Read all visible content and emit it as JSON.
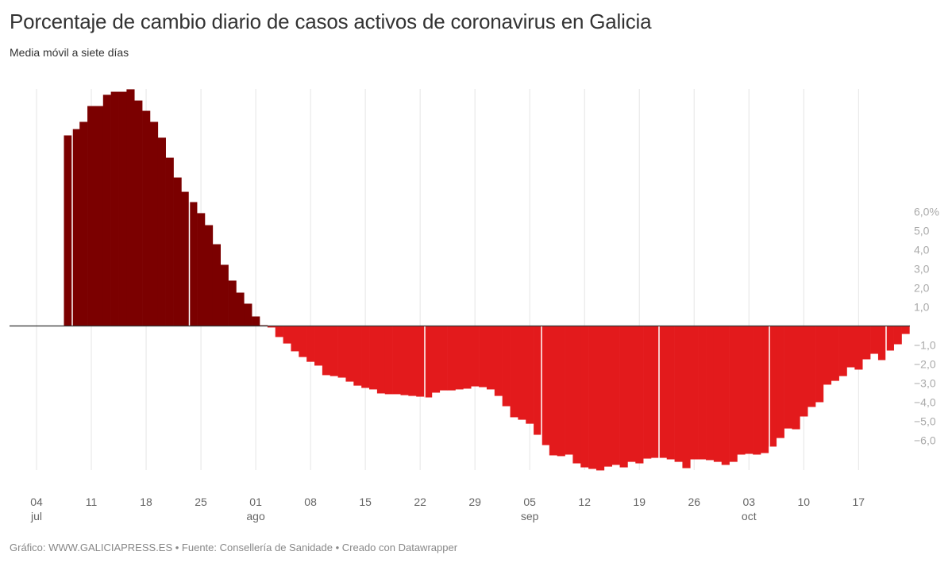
{
  "title": "Porcentaje de cambio diario de casos activos de coronavirus en Galicia",
  "subtitle": "Media móvil a siete días",
  "footer": "Gráfico: WWW.GALICIAPRESS.ES • Fuente: Consellería de Sanidade • Creado con Datawrapper",
  "colors": {
    "positive": "#7b0000",
    "negative": "#e31a1c",
    "grid": "#e5e5e5",
    "baseline": "#333333"
  },
  "chart_data": {
    "type": "bar",
    "title": "Porcentaje de cambio diario de casos activos de coronavirus en Galicia",
    "subtitle": "Media móvil a siete días",
    "xlabel": "",
    "ylabel": "%",
    "ylim": [
      -7.5,
      12.5
    ],
    "grid": true,
    "y_ticks": [
      "6,0%",
      "5,0",
      "4,0",
      "3,0",
      "2,0",
      "1,0",
      "−1,0",
      "−2,0",
      "−3,0",
      "−4,0",
      "−5,0",
      "−6,0"
    ],
    "y_tick_values": [
      6,
      5,
      4,
      3,
      2,
      1,
      -1,
      -2,
      -3,
      -4,
      -5,
      -6
    ],
    "x_ticks": [
      {
        "day": "04",
        "month": "jul"
      },
      {
        "day": "11",
        "month": ""
      },
      {
        "day": "18",
        "month": ""
      },
      {
        "day": "25",
        "month": ""
      },
      {
        "day": "01",
        "month": "ago"
      },
      {
        "day": "08",
        "month": ""
      },
      {
        "day": "15",
        "month": ""
      },
      {
        "day": "22",
        "month": ""
      },
      {
        "day": "29",
        "month": ""
      },
      {
        "day": "05",
        "month": "sep"
      },
      {
        "day": "12",
        "month": ""
      },
      {
        "day": "19",
        "month": ""
      },
      {
        "day": "26",
        "month": ""
      },
      {
        "day": "03",
        "month": "oct"
      },
      {
        "day": "10",
        "month": ""
      },
      {
        "day": "17",
        "month": ""
      }
    ],
    "start_date": "2020-07-08",
    "values": [
      10.0,
      10.33,
      10.71,
      11.54,
      11.54,
      12.13,
      12.29,
      12.29,
      12.42,
      11.83,
      11.29,
      10.71,
      9.88,
      8.83,
      7.79,
      7.04,
      6.5,
      5.92,
      5.29,
      4.29,
      3.21,
      2.38,
      1.75,
      1.17,
      0.5,
      0.04,
      -0.08,
      -0.58,
      -0.92,
      -1.33,
      -1.63,
      -1.88,
      -2.08,
      -2.58,
      -2.63,
      -2.71,
      -2.92,
      -3.13,
      -3.25,
      -3.33,
      -3.54,
      -3.58,
      -3.58,
      -3.63,
      -3.67,
      -3.71,
      -3.75,
      -3.5,
      -3.38,
      -3.38,
      -3.33,
      -3.29,
      -3.17,
      -3.21,
      -3.33,
      -3.67,
      -4.21,
      -4.79,
      -4.92,
      -5.13,
      -5.71,
      -6.25,
      -6.79,
      -6.83,
      -6.75,
      -7.21,
      -7.42,
      -7.5,
      -7.58,
      -7.38,
      -7.29,
      -7.42,
      -7.13,
      -7.21,
      -6.96,
      -6.92,
      -6.92,
      -7.0,
      -7.13,
      -7.46,
      -7.0,
      -7.0,
      -7.04,
      -7.13,
      -7.29,
      -7.13,
      -6.75,
      -6.71,
      -6.75,
      -6.67,
      -6.33,
      -5.88,
      -5.38,
      -5.42,
      -4.75,
      -4.25,
      -4.0,
      -3.08,
      -2.88,
      -2.63,
      -2.17,
      -2.29,
      -1.75,
      -1.46,
      -1.79,
      -1.29,
      -0.96,
      -0.42
    ]
  }
}
